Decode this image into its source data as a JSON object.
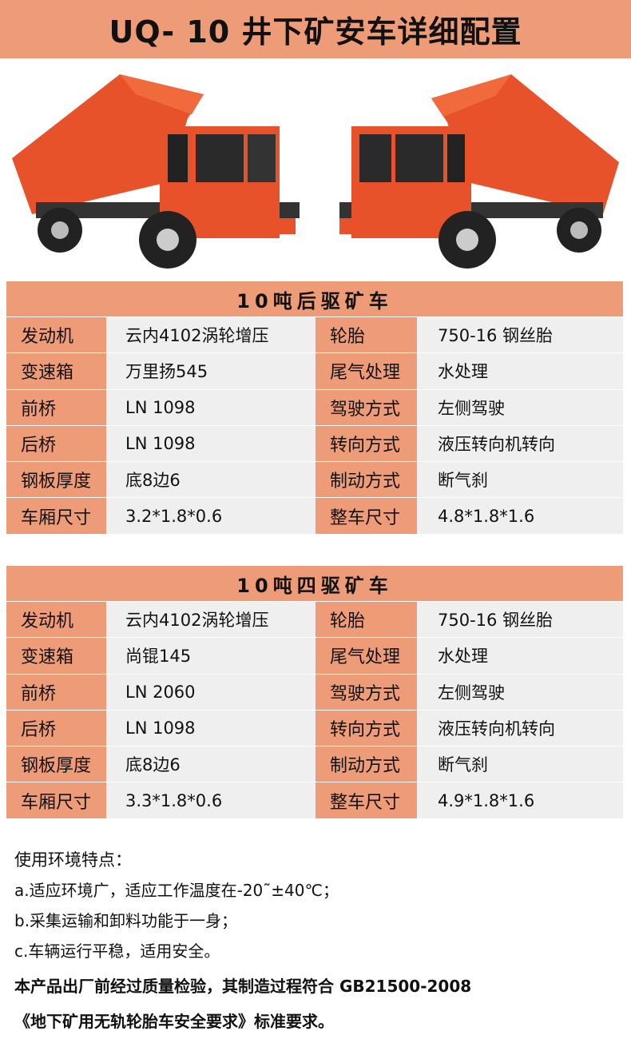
{
  "title": "UQ- 10 井下矿安车详细配置",
  "colors": {
    "header": "#EE9C78",
    "cell": "#EFEFEF",
    "truck_body": "#E8522A"
  },
  "tables": [
    {
      "heading": "10吨后驱矿车",
      "rows": [
        {
          "l1": "发动机",
          "v1": "云内4102涡轮增压",
          "l2": "轮胎",
          "v2": "750-16 钢丝胎"
        },
        {
          "l1": "变速箱",
          "v1": "万里扬545",
          "l2": "尾气处理",
          "v2": "水处理"
        },
        {
          "l1": "前桥",
          "v1": "LN 1098",
          "l2": "驾驶方式",
          "v2": "左侧驾驶"
        },
        {
          "l1": "后桥",
          "v1": "LN 1098",
          "l2": "转向方式",
          "v2": "液压转向机转向"
        },
        {
          "l1": "钢板厚度",
          "v1": "底8边6",
          "l2": "制动方式",
          "v2": "断气刹"
        },
        {
          "l1": "车厢尺寸",
          "v1": "3.2*1.8*0.6",
          "l2": "整车尺寸",
          "v2": "4.8*1.8*1.6"
        }
      ]
    },
    {
      "heading": "10吨四驱矿车",
      "rows": [
        {
          "l1": "发动机",
          "v1": "云内4102涡轮增压",
          "l2": "轮胎",
          "v2": "750-16 钢丝胎"
        },
        {
          "l1": "变速箱",
          "v1": "尚锟145",
          "l2": "尾气处理",
          "v2": "水处理"
        },
        {
          "l1": "前桥",
          "v1": "LN 2060",
          "l2": "驾驶方式",
          "v2": "左侧驾驶"
        },
        {
          "l1": "后桥",
          "v1": "LN 1098",
          "l2": "转向方式",
          "v2": "液压转向机转向"
        },
        {
          "l1": "钢板厚度",
          "v1": "底8边6",
          "l2": "制动方式",
          "v2": "断气刹"
        },
        {
          "l1": "车厢尺寸",
          "v1": "3.3*1.8*0.6",
          "l2": "整车尺寸",
          "v2": "4.9*1.8*1.6"
        }
      ]
    }
  ],
  "notes": {
    "heading": "使用环境特点：",
    "items": [
      "a.适应环境广，适应工作温度在-20˜±40℃；",
      "b.采集运输和卸料功能于一身；",
      "c.车辆运行平稳，适用安全。"
    ],
    "paragraph1": "本产品出厂前经过质量检验，其制造过程符合 GB21500-2008",
    "paragraph2": "《地下矿用无轨轮胎车安全要求》标准要求。"
  }
}
